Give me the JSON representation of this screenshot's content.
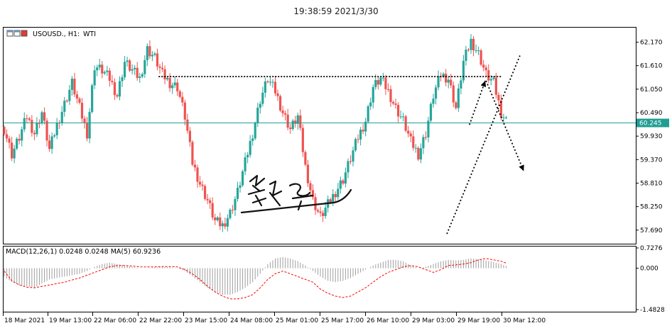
{
  "window": {
    "timestamp": "19:38:59 2021/3/30"
  },
  "symbol_header": {
    "symbol": "USOUSD., H1:",
    "name": "WTI"
  },
  "colors": {
    "bull": "#26a69a",
    "bear": "#ef5350",
    "current_price_line": "#1f9e91",
    "macd_signal": "#ff0000",
    "macd_hist": "#9e9e9e",
    "grid_frame": "#000000"
  },
  "chart_data": [
    {
      "type": "candlestick",
      "title": "USOUSD., H1: WTI",
      "y_ticks": [
        "62.170",
        "61.610",
        "61.050",
        "60.490",
        "59.930",
        "59.370",
        "58.810",
        "58.250",
        "57.690"
      ],
      "ylim": [
        57.4,
        62.5
      ],
      "x_ticks": [
        "18 Mar 2021",
        "19 Mar 13:00",
        "22 Mar 06:00",
        "22 Mar 22:00",
        "23 Mar 15:00",
        "24 Mar 08:00",
        "25 Mar 01:00",
        "25 Mar 17:00",
        "26 Mar 10:00",
        "29 Mar 03:00",
        "29 Mar 19:00",
        "30 Mar 12:00"
      ],
      "current_price": {
        "label": "60.245",
        "value": 60.245
      },
      "close_path": [
        60.1,
        59.5,
        59.9,
        60.4,
        60.0,
        60.5,
        59.6,
        60.2,
        60.7,
        61.2,
        60.6,
        60.0,
        61.6,
        61.5,
        61.3,
        60.9,
        61.7,
        61.5,
        61.3,
        62.0,
        61.8,
        61.4,
        61.2,
        61.1,
        60.4,
        59.3,
        58.8,
        58.4,
        57.9,
        57.8,
        58.1,
        58.6,
        59.3,
        60.0,
        60.8,
        61.3,
        61.0,
        60.5,
        60.1,
        60.4,
        59.2,
        58.4,
        58.0,
        58.3,
        58.6,
        58.9,
        59.4,
        59.9,
        60.3,
        61.1,
        61.3,
        61.0,
        60.6,
        60.3,
        59.8,
        59.5,
        60.0,
        60.9,
        61.4,
        61.3,
        60.6,
        61.7,
        62.2,
        61.9,
        61.4,
        61.2,
        60.5,
        60.2
      ],
      "overlays": {
        "resistance_line_level": 61.35,
        "trendline": [
          {
            "t": 58.8,
            "price": 57.6
          },
          {
            "t": 68.5,
            "price": 61.85
          }
        ],
        "arrow_up": [
          {
            "t": 61.8,
            "price": 60.2
          },
          {
            "t": 63.9,
            "price": 61.25
          }
        ],
        "arrow_down": [
          {
            "t": 64.0,
            "price": 61.25
          },
          {
            "t": 69.0,
            "price": 59.1
          }
        ]
      }
    },
    {
      "type": "histogram_line",
      "title": "MACD(12,26,1) 0.0248 0.0248 MA(5) 60.9236",
      "y_ticks": [
        "0.7276",
        "0.000",
        "-1.4828"
      ],
      "ylim": [
        -1.4828,
        0.7276
      ],
      "hist": [
        -0.3,
        -0.5,
        -0.6,
        -0.65,
        -0.7,
        -0.55,
        -0.4,
        -0.35,
        -0.3,
        -0.25,
        -0.2,
        -0.1,
        0.05,
        0.15,
        0.2,
        0.15,
        0.1,
        0.05,
        0.0,
        0.0,
        0.03,
        0.05,
        0.04,
        0.0,
        -0.1,
        -0.3,
        -0.5,
        -0.7,
        -0.85,
        -0.95,
        -0.95,
        -0.85,
        -0.7,
        -0.5,
        -0.2,
        0.15,
        0.35,
        0.4,
        0.35,
        0.25,
        0.1,
        -0.1,
        -0.3,
        -0.45,
        -0.5,
        -0.45,
        -0.35,
        -0.2,
        -0.05,
        0.1,
        0.2,
        0.3,
        0.3,
        0.25,
        0.1,
        0.0,
        0.05,
        0.15,
        0.25,
        0.3,
        0.28,
        0.3,
        0.35,
        0.32,
        0.28,
        0.22,
        0.15,
        0.05
      ],
      "signal": [
        -0.1,
        -0.45,
        -0.6,
        -0.68,
        -0.7,
        -0.65,
        -0.6,
        -0.55,
        -0.5,
        -0.42,
        -0.35,
        -0.25,
        -0.15,
        -0.05,
        0.05,
        0.1,
        0.1,
        0.08,
        0.05,
        0.05,
        0.05,
        0.06,
        0.06,
        0.05,
        -0.05,
        -0.2,
        -0.4,
        -0.65,
        -0.85,
        -1.0,
        -1.1,
        -1.1,
        -1.05,
        -0.95,
        -0.7,
        -0.4,
        -0.2,
        -0.1,
        -0.2,
        -0.3,
        -0.4,
        -0.5,
        -0.75,
        -0.9,
        -1.0,
        -1.05,
        -1.0,
        -0.85,
        -0.7,
        -0.5,
        -0.3,
        -0.15,
        -0.05,
        0.05,
        0.1,
        0.05,
        -0.05,
        -0.15,
        -0.05,
        0.1,
        0.12,
        0.15,
        0.2,
        0.3,
        0.35,
        0.3,
        0.25,
        0.15
      ]
    }
  ],
  "macd_tick_labels": [
    {
      "text": "0.7276",
      "value": 0.7276
    },
    {
      "text": "0.000",
      "value": 0.0
    },
    {
      "text": "-1.4828",
      "value": -1.4828
    }
  ],
  "price_tick_labels": [
    {
      "text": "62.170",
      "value": 62.17
    },
    {
      "text": "61.610",
      "value": 61.61
    },
    {
      "text": "61.050",
      "value": 61.05
    },
    {
      "text": "60.490",
      "value": 60.49
    },
    {
      "text": "59.930",
      "value": 59.93
    },
    {
      "text": "59.370",
      "value": 59.37
    },
    {
      "text": "58.810",
      "value": 58.81
    },
    {
      "text": "58.250",
      "value": 58.25
    },
    {
      "text": "57.690",
      "value": 57.69
    }
  ]
}
